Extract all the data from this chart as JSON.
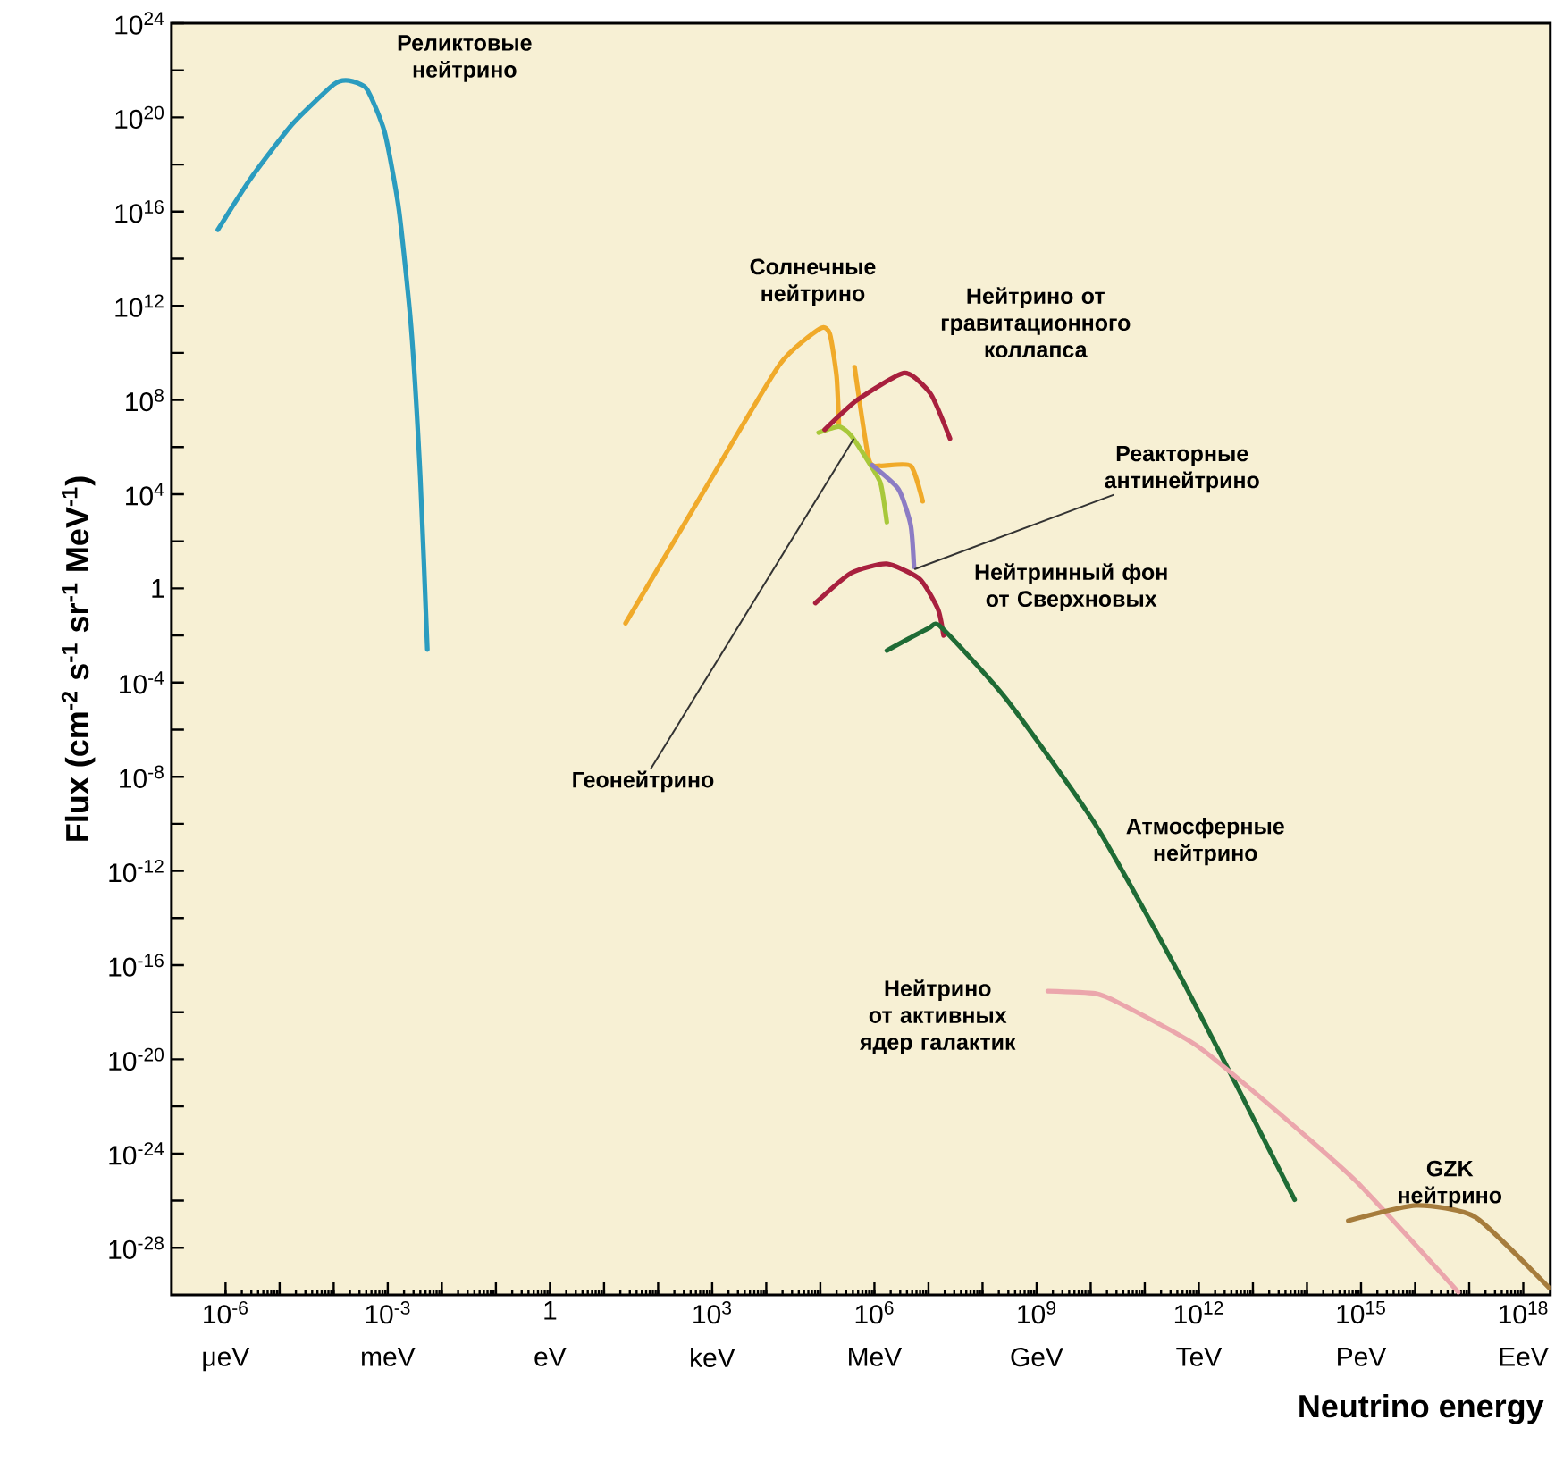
{
  "chart_data": {
    "type": "line",
    "xlabel": "Neutrino energy",
    "ylabel": "Flux (cm$^{-2}$ s$^{-1}$ sr$^{-1}$ MeV$^{-1}$)",
    "log": "xy",
    "legend": false,
    "grid": false,
    "marker": "none",
    "xlim": [
      1e-07,
      3.16e+18
    ],
    "ylim": [
      1e-30,
      1e+24
    ],
    "xticks": [
      {
        "value": 1e-06,
        "label": "10$^{-6}$"
      },
      {
        "value": 1e-05,
        "label": null
      },
      {
        "value": 0.0001,
        "label": null
      },
      {
        "value": 0.001,
        "label": "10$^{-3}$"
      },
      {
        "value": 0.01,
        "label": null
      },
      {
        "value": 0.1,
        "label": null
      },
      1,
      {
        "value": 10,
        "label": null
      },
      {
        "value": 100,
        "label": null
      },
      {
        "value": 1000.0,
        "label": "10$^{3}$"
      },
      {
        "value": 10000.0,
        "label": null
      },
      {
        "value": 100000.0,
        "label": null
      },
      {
        "value": 1000000.0,
        "label": "10$^{6}$"
      },
      {
        "value": 10000000.0,
        "label": null
      },
      {
        "value": 100000000.0,
        "label": null
      },
      {
        "value": 1000000000.0,
        "label": "10$^{9}$"
      },
      {
        "value": 10000000000.0,
        "label": null
      },
      {
        "value": 100000000000.0,
        "label": null
      },
      {
        "value": 1000000000000.0,
        "label": "10$^{12}$"
      },
      {
        "value": 10000000000000.0,
        "label": null
      },
      {
        "value": 100000000000000.0,
        "label": null
      },
      {
        "value": 1000000000000000.0,
        "label": "10$^{15}$"
      },
      {
        "value": 1e+16,
        "label": null
      },
      {
        "value": 1e+17,
        "label": null
      },
      {
        "value": 1e+18,
        "label": "10$^{18}$"
      }
    ],
    "annotations": [
      "μeV",
      "meV",
      "eV",
      "keV",
      "MeV",
      "GeV",
      "TeV",
      "PeV",
      "EeV"
    ],
    "yticks": [
      {
        "value": 1e+24,
        "label": "10$^{24}$"
      },
      {
        "value": 1e+22,
        "label": null
      },
      {
        "value": 1e+20,
        "label": "10$^{20}$"
      },
      {
        "value": 1e+18,
        "label": null
      },
      {
        "value": 1e+16,
        "label": "10$^{16}$"
      },
      {
        "value": 100000000000000.0,
        "label": null
      },
      {
        "value": 1000000000000.0,
        "label": "10$^{12}$"
      },
      {
        "value": 10000000000.0,
        "label": null
      },
      {
        "value": 100000000.0,
        "label": "10$^{8}$"
      },
      {
        "value": 1000000.0,
        "label": null
      },
      {
        "value": 10000.0,
        "label": "10$^{4}$"
      },
      {
        "value": 100,
        "label": null
      },
      1,
      {
        "value": 0.01,
        "label": null
      },
      {
        "value": 0.0001,
        "label": "10$^{-4}$"
      },
      {
        "value": 1e-06,
        "label": null
      },
      {
        "value": 1e-08,
        "label": "10$^{-8}$"
      },
      {
        "value": 1e-10,
        "label": null
      },
      {
        "value": 1e-12,
        "label": "10$^{-12}$"
      },
      {
        "value": 1e-14,
        "label": null
      },
      {
        "value": 1e-16,
        "label": "10$^{-16}$"
      },
      {
        "value": 1e-18,
        "label": null
      },
      {
        "value": 1e-20,
        "label": "10$^{-20}$"
      },
      {
        "value": 1e-22,
        "label": null
      },
      {
        "value": 1e-24,
        "label": "10$^{-24}$"
      },
      {
        "value": 1e-26,
        "label": null
      },
      {
        "value": 1e-28,
        "label": "10$^{-28}$"
      }
    ],
    "series": [
      {
        "name": "Реликтовые нейтрино",
        "color": "#2b9cbf",
        "x": [
          7.2e-07,
          2.9e-06,
          1.7e-05,
          0.0001,
          0.00019,
          0.00041,
          0.00087,
          0.0016,
          0.0027,
          0.004,
          0.0054
        ],
        "values": [
          1700000000000000.0,
          2.5e+17,
          5e+19,
          2.5e+21,
          3.7e+21,
          1.6e+21,
          2.5e+19,
          1.3e+16,
          130000000000.0,
          50000.0,
          0.0025
        ]
      },
      {
        "name": "Солнечные нейтрино",
        "color": "#f0aa2a",
        "x": [
          25,
          850,
          18000.0,
          100000.0,
          150000.0,
          200000.0,
          220000.0,
          300000.0,
          430000.0,
          790000.0,
          1300000.0,
          4700000.0,
          7800000.0
        ],
        "values": [
          0.033,
          29000.0,
          3400000000.0,
          110000000000.0,
          63000000000.0,
          1000000000.0,
          10000000.0,
          null,
          2500000000.0,
          300000.0,
          160000.0,
          160000.0,
          5000.0
        ]
      },
      {
        "name": "Геонейтрино",
        "color": "#a8c83a",
        "x": [
          93000.0,
          220000.0,
          370000.0,
          790000.0,
          1300000.0,
          1700000.0
        ],
        "values": [
          4100000.0,
          7400000.0,
          3100000.0,
          220000.0,
          29000.0,
          650
        ]
      },
      {
        "name": "Реакторные антинейтрино",
        "color": "#8c7cc4",
        "x": [
          910000.0,
          2800000.0,
          4700000.0,
          5400000.0
        ],
        "values": [
          170000.0,
          16000.0,
          480,
          8.1
        ]
      },
      {
        "name": "Нейтрино от гравитационного коллапса",
        "color": "#a8203e",
        "x": [
          120000.0,
          480000.0,
          3600000.0,
          11000000.0,
          25000000.0
        ],
        "values": [
          5500000.0,
          100000000.0,
          1400000000.0,
          180000000.0,
          2300000.0
        ]
      },
      {
        "name": "Нейтринный фон от Сверхновых",
        "color": "#a8203e",
        "x": [
          81000.0,
          370000.0,
          1700000.0,
          6900000.0,
          15000000.0,
          19000000.0
        ],
        "values": [
          0.24,
          4.5,
          11,
          2.5,
          0.13,
          0.01
        ]
      },
      {
        "name": "Атмосферные нейтрино",
        "color": "#1f6b35",
        "x": [
          1700000.0,
          10000000.0,
          17000000.0,
          270000000.0,
          12000000000.0,
          540000000000.0,
          59000000000000.0
        ],
        "values": [
          0.0023,
          0.02,
          0.023,
          2.1e-05,
          1e-10,
          1.6e-17,
          1.1e-26
        ]
      },
      {
        "name": "Нейтрино от активных ядер галактик",
        "color": "#eba6ac",
        "x": [
          1600000000.0,
          12000000000.0,
          33000000000.0,
          890000000000.0,
          19000000000000.0,
          830000000000000.0,
          6.3e+16
        ],
        "values": [
          7.9e-18,
          6.3e-18,
          2.5e-18,
          4e-20,
          1.3e-22,
          6.3e-26,
          1.3e-30
        ]
      },
      {
        "name": "GZK нейтрино",
        "color": "#a67c3c",
        "x": [
          580000000000000.0,
          1.05e+16,
          1.3e+17,
          3e+18
        ],
        "values": [
          1.4e-27,
          6.3e-27,
          2e-27,
          2e-30
        ]
      }
    ]
  }
}
